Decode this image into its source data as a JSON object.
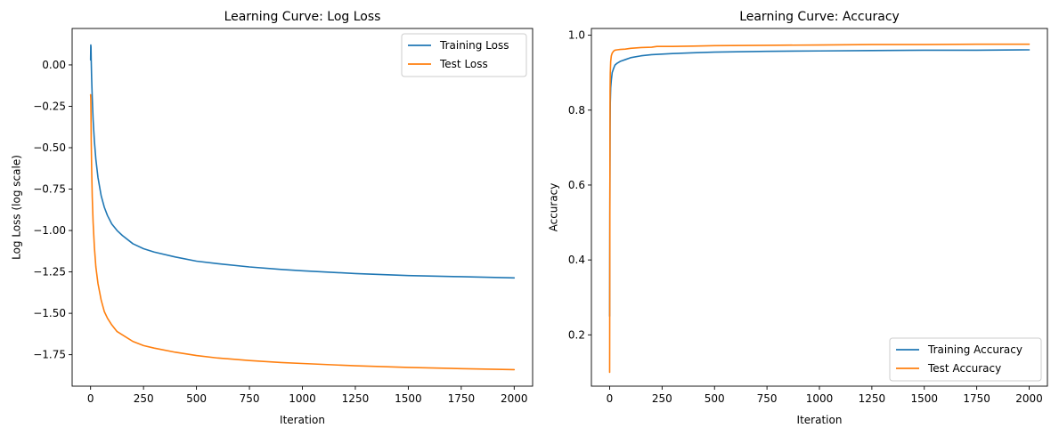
{
  "chart_data": [
    {
      "type": "line",
      "title": "Learning Curve: Log Loss",
      "xlabel": "Iteration",
      "ylabel": "Log Loss (log scale)",
      "xlim": [
        -87,
        2087
      ],
      "ylim": [
        -1.94,
        0.22
      ],
      "xticks": [
        0,
        250,
        500,
        750,
        1000,
        1250,
        1500,
        1750,
        2000
      ],
      "xtick_labels": [
        "0",
        "250",
        "500",
        "750",
        "1000",
        "1250",
        "1500",
        "1750",
        "2000"
      ],
      "yticks": [
        0.0,
        -0.25,
        -0.5,
        -0.75,
        -1.0,
        -1.25,
        -1.5,
        -1.75
      ],
      "ytick_labels": [
        "0.00",
        "−0.25",
        "−0.50",
        "−0.75",
        "−1.00",
        "−1.25",
        "−1.50",
        "−1.75"
      ],
      "grid": false,
      "legend": "top-right",
      "series": [
        {
          "name": "Training Loss",
          "color": "#1f77b4",
          "x": [
            0,
            1,
            2,
            3,
            5,
            8,
            12,
            18,
            25,
            35,
            50,
            65,
            80,
            100,
            125,
            150,
            200,
            250,
            300,
            400,
            500,
            600,
            750,
            900,
            1000,
            1250,
            1500,
            1750,
            2000
          ],
          "y": [
            0.03,
            0.12,
            0.11,
            0.03,
            -0.08,
            -0.2,
            -0.33,
            -0.46,
            -0.57,
            -0.68,
            -0.79,
            -0.86,
            -0.91,
            -0.96,
            -1.0,
            -1.03,
            -1.08,
            -1.11,
            -1.13,
            -1.16,
            -1.185,
            -1.2,
            -1.22,
            -1.235,
            -1.243,
            -1.26,
            -1.272,
            -1.279,
            -1.286
          ]
        },
        {
          "name": "Test Loss",
          "color": "#ff7f0e",
          "x": [
            0,
            1,
            2,
            3,
            5,
            8,
            12,
            18,
            25,
            35,
            50,
            65,
            80,
            100,
            125,
            150,
            200,
            250,
            300,
            400,
            500,
            600,
            750,
            900,
            1000,
            1250,
            1500,
            1750,
            2000
          ],
          "y": [
            -0.18,
            -0.2,
            -0.3,
            -0.45,
            -0.62,
            -0.8,
            -0.95,
            -1.1,
            -1.22,
            -1.32,
            -1.42,
            -1.49,
            -1.53,
            -1.57,
            -1.61,
            -1.63,
            -1.67,
            -1.695,
            -1.71,
            -1.735,
            -1.755,
            -1.77,
            -1.785,
            -1.797,
            -1.803,
            -1.817,
            -1.827,
            -1.834,
            -1.84
          ]
        }
      ]
    },
    {
      "type": "line",
      "title": "Learning Curve: Accuracy",
      "xlabel": "Iteration",
      "ylabel": "Accuracy",
      "xlim": [
        -87,
        2087
      ],
      "ylim": [
        0.063,
        1.018
      ],
      "xticks": [
        0,
        250,
        500,
        750,
        1000,
        1250,
        1500,
        1750,
        2000
      ],
      "xtick_labels": [
        "0",
        "250",
        "500",
        "750",
        "1000",
        "1250",
        "1500",
        "1750",
        "2000"
      ],
      "yticks": [
        0.2,
        0.4,
        0.6,
        0.8,
        1.0
      ],
      "ytick_labels": [
        "0.2",
        "0.4",
        "0.6",
        "0.8",
        "1.0"
      ],
      "grid": false,
      "legend": "bottom-right",
      "series": [
        {
          "name": "Training Accuracy",
          "color": "#1f77b4",
          "x": [
            0,
            1,
            2,
            3,
            5,
            8,
            12,
            18,
            25,
            35,
            50,
            75,
            100,
            150,
            200,
            300,
            400,
            500,
            750,
            1000,
            1250,
            1500,
            1750,
            2000
          ],
          "y": [
            0.25,
            0.55,
            0.75,
            0.82,
            0.86,
            0.88,
            0.9,
            0.91,
            0.92,
            0.925,
            0.93,
            0.935,
            0.94,
            0.945,
            0.948,
            0.951,
            0.953,
            0.955,
            0.957,
            0.958,
            0.959,
            0.96,
            0.96,
            0.961
          ]
        },
        {
          "name": "Test Accuracy",
          "color": "#ff7f0e",
          "x": [
            0,
            1,
            2,
            3,
            5,
            8,
            12,
            18,
            25,
            35,
            50,
            75,
            100,
            150,
            200,
            225,
            300,
            400,
            500,
            750,
            1000,
            1250,
            1500,
            1750,
            2000
          ],
          "y": [
            0.1,
            0.5,
            0.85,
            0.9,
            0.93,
            0.945,
            0.952,
            0.957,
            0.96,
            0.961,
            0.962,
            0.963,
            0.965,
            0.967,
            0.968,
            0.97,
            0.97,
            0.971,
            0.972,
            0.973,
            0.974,
            0.975,
            0.975,
            0.976,
            0.976
          ]
        }
      ]
    }
  ]
}
